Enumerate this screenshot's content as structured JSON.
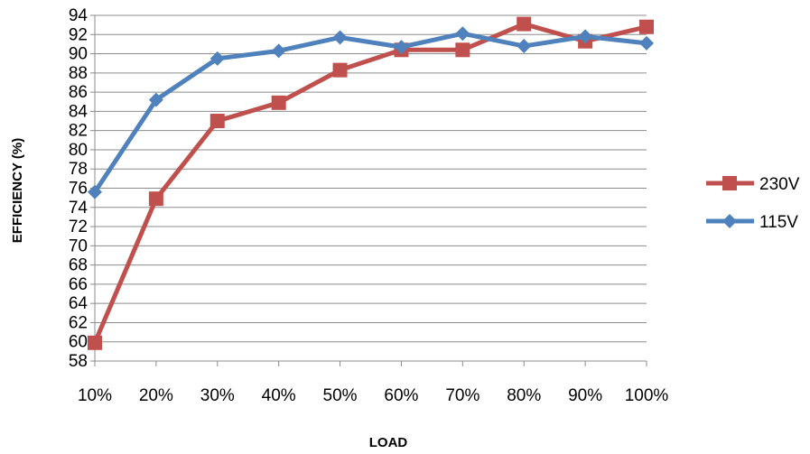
{
  "chart_data": {
    "type": "line",
    "xlabel": "LOAD",
    "ylabel": "EFFICIENCY (%)",
    "ylim": [
      58,
      94
    ],
    "ytick_step": 2,
    "categories": [
      "10%",
      "20%",
      "30%",
      "40%",
      "50%",
      "60%",
      "70%",
      "80%",
      "90%",
      "100%"
    ],
    "grid": "horizontal",
    "legend_position": "right",
    "series": [
      {
        "name": "230V",
        "color": "#c0504d",
        "marker": "square",
        "values": [
          59.9,
          74.9,
          83.0,
          84.9,
          88.3,
          90.4,
          90.4,
          93.1,
          91.3,
          92.8
        ]
      },
      {
        "name": "115V",
        "color": "#4f81bd",
        "marker": "diamond",
        "values": [
          75.6,
          85.2,
          89.5,
          90.3,
          91.7,
          90.7,
          92.1,
          90.8,
          91.8,
          91.1
        ]
      }
    ]
  }
}
